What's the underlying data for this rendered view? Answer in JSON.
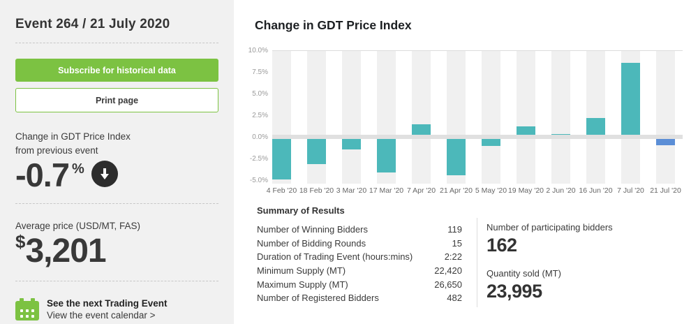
{
  "sidebar": {
    "title": "Event 264 / 21 July 2020",
    "subscribe_label": "Subscribe for historical data",
    "print_label": "Print page",
    "index_change": {
      "label_line1": "Change in GDT Price Index",
      "label_line2": "from previous event",
      "value": "-0.7",
      "unit": "%",
      "direction": "down"
    },
    "average_price": {
      "label": "Average price (USD/MT, FAS)",
      "currency": "$",
      "value": "3,201"
    },
    "next_event": {
      "title": "See the next Trading Event",
      "link": "View the event calendar >"
    }
  },
  "main": {
    "chart_title": "Change in GDT Price Index",
    "summary": {
      "heading": "Summary of Results",
      "rows": [
        {
          "label": "Number of Winning Bidders",
          "value": "119"
        },
        {
          "label": "Number of Bidding Rounds",
          "value": "15"
        },
        {
          "label": "Duration of Trading Event (hours:mins)",
          "value": "2:22"
        },
        {
          "label": "Minimum Supply (MT)",
          "value": "22,420"
        },
        {
          "label": "Maximum Supply (MT)",
          "value": "26,650"
        },
        {
          "label": "Number of Registered Bidders",
          "value": "482"
        }
      ],
      "highlights": [
        {
          "label": "Number of participating bidders",
          "value": "162"
        },
        {
          "label": "Quantity sold (MT)",
          "value": "23,995"
        }
      ]
    }
  },
  "chart_data": {
    "type": "bar",
    "title": "Change in GDT Price Index",
    "categories": [
      "4 Feb '20",
      "18 Feb '20",
      "3 Mar '20",
      "17 Mar '20",
      "7 Apr '20",
      "21 Apr '20",
      "5 May '20",
      "19 May '20",
      "2 Jun '20",
      "16 Jun '20",
      "7 Jul '20",
      "21 Jul '20"
    ],
    "values": [
      -4.7,
      -2.9,
      -1.2,
      -3.9,
      1.2,
      -4.2,
      -0.8,
      1.0,
      0.1,
      1.9,
      8.3,
      -0.7
    ],
    "xlabel": "",
    "ylabel": "",
    "ylim": [
      -5,
      10
    ],
    "yticks": [
      {
        "value": 10,
        "label": "10.0%"
      },
      {
        "value": 7.5,
        "label": "7.5%"
      },
      {
        "value": 5,
        "label": "5.0%"
      },
      {
        "value": 2.5,
        "label": "2.5%"
      },
      {
        "value": 0,
        "label": "0.0%"
      },
      {
        "value": -2.5,
        "label": "-2.5%"
      },
      {
        "value": -5,
        "label": "-5.0%"
      }
    ],
    "grid": "alternating-column-stripes",
    "legend": "none",
    "bar_color": "#4cb8ba",
    "highlight_color": "#5b8ed6",
    "highlight_index": 11
  },
  "colors": {
    "sidebar_bg": "#f1f1f1",
    "brand_green": "#7cc242",
    "text_dark": "#333333",
    "badge_bg": "#2d2d2d",
    "stripe": "#f0f0f0",
    "zero_band": "#e0e0e0"
  }
}
